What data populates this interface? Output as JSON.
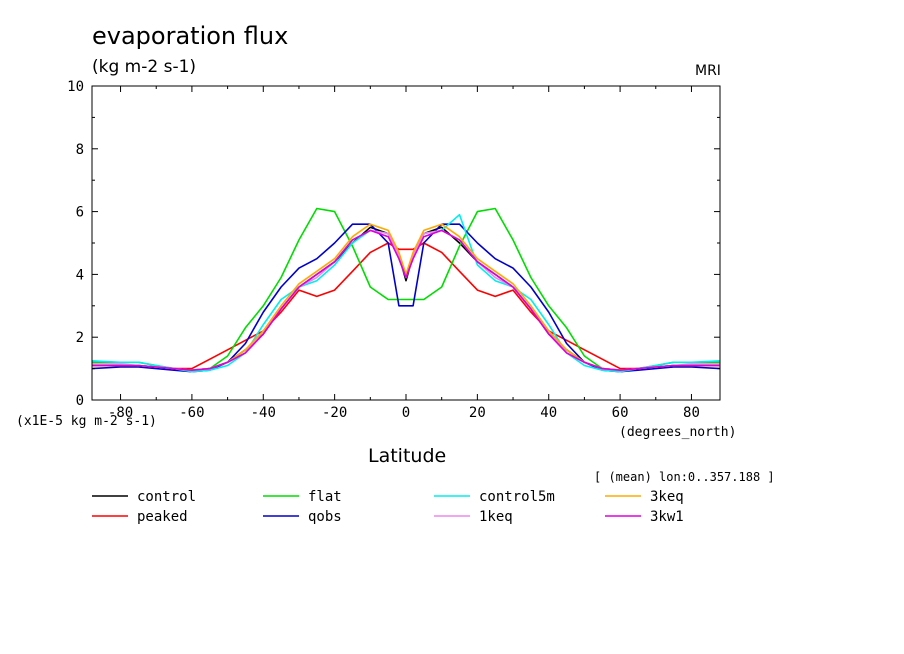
{
  "header": {
    "title": "evaporation flux",
    "units": "(kg m-2 s-1)",
    "source": "MRI"
  },
  "footer": {
    "y_unit": "(x1E-5 kg m-2 s-1)",
    "x_unit": "(degrees_north)",
    "note": "[ (mean) lon:0..357.188 ]"
  },
  "chart_data": {
    "type": "line",
    "title": "evaporation flux",
    "xlabel": "Latitude",
    "ylabel": "",
    "xlim": [
      -88,
      88
    ],
    "ylim": [
      0,
      10
    ],
    "xticks": [
      -80,
      -60,
      -40,
      -20,
      0,
      20,
      40,
      60,
      80
    ],
    "yticks": [
      0,
      2,
      4,
      6,
      8,
      10
    ],
    "grid": false,
    "legend_position": "bottom",
    "x": [
      -88,
      -80,
      -75,
      -70,
      -65,
      -60,
      -55,
      -50,
      -45,
      -40,
      -35,
      -30,
      -25,
      -20,
      -15,
      -10,
      -5,
      -2,
      0,
      2,
      5,
      10,
      15,
      20,
      25,
      30,
      35,
      40,
      45,
      50,
      55,
      60,
      65,
      70,
      75,
      80,
      88
    ],
    "series": [
      {
        "name": "control",
        "color": "#000000",
        "values": [
          1.1,
          1.1,
          1.1,
          1.05,
          1.0,
          0.95,
          1.0,
          1.2,
          1.6,
          2.1,
          2.9,
          3.6,
          4.0,
          4.4,
          5.0,
          5.5,
          5.3,
          4.6,
          3.8,
          4.6,
          5.3,
          5.5,
          5.0,
          4.4,
          4.0,
          3.6,
          2.9,
          2.1,
          1.6,
          1.2,
          1.0,
          0.95,
          1.0,
          1.05,
          1.1,
          1.1,
          1.1
        ]
      },
      {
        "name": "peaked",
        "color": "#ff0000",
        "values": [
          1.1,
          1.1,
          1.1,
          1.05,
          1.0,
          1.0,
          1.3,
          1.6,
          1.9,
          2.2,
          2.8,
          3.5,
          3.3,
          3.5,
          4.1,
          4.7,
          5.0,
          4.8,
          4.8,
          4.8,
          5.0,
          4.7,
          4.1,
          3.5,
          3.3,
          3.5,
          2.8,
          2.2,
          1.9,
          1.6,
          1.3,
          1.0,
          1.0,
          1.05,
          1.1,
          1.1,
          1.1
        ]
      },
      {
        "name": "flat",
        "color": "#00dd00",
        "values": [
          1.2,
          1.2,
          1.2,
          1.1,
          1.0,
          0.9,
          1.0,
          1.4,
          2.3,
          3.0,
          3.9,
          5.1,
          6.1,
          6.0,
          4.9,
          3.6,
          3.2,
          3.2,
          3.2,
          3.2,
          3.2,
          3.6,
          4.9,
          6.0,
          6.1,
          5.1,
          3.9,
          3.0,
          2.3,
          1.4,
          1.0,
          0.9,
          1.0,
          1.1,
          1.2,
          1.2,
          1.2
        ]
      },
      {
        "name": "qobs",
        "color": "#0000cc",
        "values": [
          1.0,
          1.05,
          1.05,
          1.0,
          0.95,
          0.9,
          0.95,
          1.2,
          1.8,
          2.8,
          3.6,
          4.2,
          4.5,
          5.0,
          5.6,
          5.6,
          5.0,
          3.0,
          3.0,
          3.0,
          5.0,
          5.6,
          5.6,
          5.0,
          4.5,
          4.2,
          3.6,
          2.8,
          1.8,
          1.2,
          0.95,
          0.9,
          0.95,
          1.0,
          1.05,
          1.05,
          1.0
        ]
      },
      {
        "name": "control5m",
        "color": "#00eeee",
        "values": [
          1.25,
          1.2,
          1.2,
          1.1,
          1.0,
          0.9,
          0.95,
          1.1,
          1.5,
          2.4,
          3.2,
          3.6,
          3.8,
          4.3,
          5.0,
          5.4,
          5.3,
          4.5,
          3.9,
          4.5,
          5.3,
          5.4,
          5.9,
          4.3,
          3.8,
          3.6,
          3.2,
          2.4,
          1.5,
          1.1,
          0.95,
          0.9,
          1.0,
          1.1,
          1.2,
          1.2,
          1.25
        ]
      },
      {
        "name": "1keq",
        "color": "#ee88ee",
        "values": [
          1.15,
          1.15,
          1.1,
          1.05,
          1.0,
          0.95,
          1.0,
          1.2,
          1.5,
          2.2,
          2.9,
          3.6,
          3.9,
          4.4,
          5.1,
          5.4,
          5.3,
          4.6,
          3.9,
          4.6,
          5.3,
          5.4,
          5.1,
          4.4,
          3.9,
          3.6,
          2.9,
          2.2,
          1.5,
          1.2,
          1.0,
          0.95,
          1.0,
          1.05,
          1.1,
          1.15,
          1.15
        ]
      },
      {
        "name": "3keq",
        "color": "#ffaa00",
        "values": [
          1.1,
          1.1,
          1.1,
          1.05,
          1.0,
          0.95,
          1.0,
          1.2,
          1.6,
          2.2,
          3.0,
          3.7,
          4.1,
          4.5,
          5.2,
          5.6,
          5.4,
          4.7,
          4.0,
          4.7,
          5.4,
          5.6,
          5.2,
          4.5,
          4.1,
          3.7,
          3.0,
          2.2,
          1.6,
          1.2,
          1.0,
          0.95,
          1.0,
          1.05,
          1.1,
          1.1,
          1.1
        ]
      },
      {
        "name": "3kw1",
        "color": "#dd00dd",
        "values": [
          1.1,
          1.1,
          1.1,
          1.05,
          1.0,
          0.95,
          1.0,
          1.2,
          1.5,
          2.1,
          2.9,
          3.6,
          4.0,
          4.4,
          5.1,
          5.4,
          5.2,
          4.5,
          3.9,
          4.5,
          5.2,
          5.4,
          5.1,
          4.4,
          4.0,
          3.6,
          2.9,
          2.1,
          1.5,
          1.2,
          1.0,
          0.95,
          1.0,
          1.05,
          1.1,
          1.1,
          1.1
        ]
      }
    ]
  }
}
